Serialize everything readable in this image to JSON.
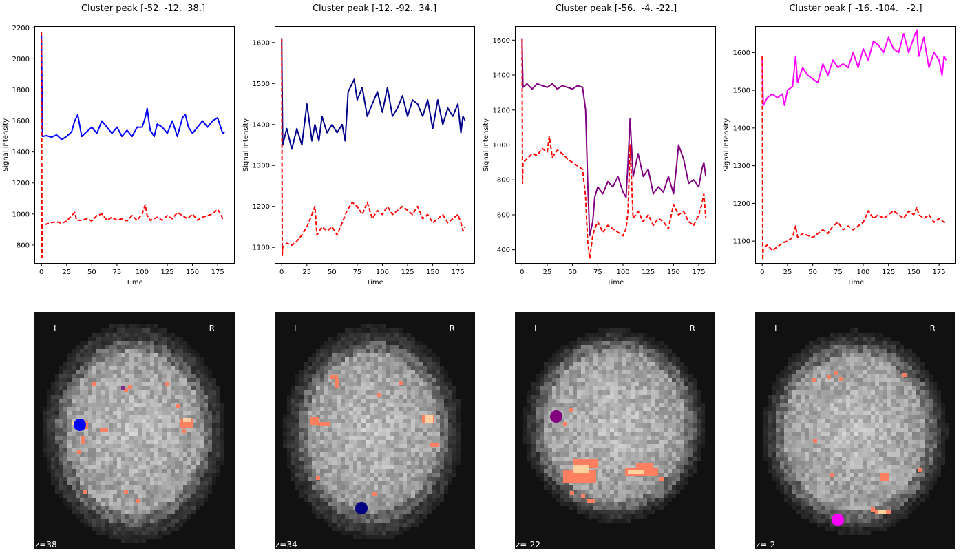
{
  "figure": {
    "panels": [
      {
        "title": "Cluster peak [-52. -12.  38.]",
        "z_label": "z=38",
        "left_label": "L",
        "right_label": "R"
      },
      {
        "title": "Cluster peak [-12. -92.  34.]",
        "z_label": "z=34",
        "left_label": "L",
        "right_label": "R"
      },
      {
        "title": "Cluster peak [-56.  -4. -22.]",
        "z_label": "z=-22",
        "left_label": "L",
        "right_label": "R"
      },
      {
        "title": "Cluster peak [ -16. -104.   -2.]",
        "z_label": "z=-2",
        "left_label": "L",
        "right_label": "R"
      }
    ]
  },
  "chart_data": [
    {
      "type": "line",
      "title": "Cluster peak [-52. -12.  38.]",
      "xlabel": "Time",
      "ylabel": "Signal intensity",
      "xlim": [
        -7,
        192
      ],
      "ylim": [
        680,
        2210
      ],
      "xticks": [
        0,
        25,
        50,
        75,
        100,
        125,
        150,
        175
      ],
      "yticks": [
        800,
        1000,
        1200,
        1400,
        1600,
        1800,
        2000,
        2200
      ],
      "grid": false,
      "series": [
        {
          "color": "#0000ff",
          "style": "solid",
          "x": [
            0,
            1,
            5,
            10,
            15,
            20,
            25,
            30,
            33,
            36,
            40,
            45,
            50,
            55,
            60,
            65,
            70,
            75,
            80,
            85,
            90,
            95,
            100,
            103,
            105,
            108,
            112,
            115,
            120,
            125,
            130,
            135,
            140,
            143,
            146,
            150,
            155,
            160,
            165,
            170,
            175,
            178,
            180,
            182
          ],
          "y": [
            2150,
            1500,
            1505,
            1495,
            1510,
            1480,
            1500,
            1530,
            1600,
            1640,
            1500,
            1530,
            1560,
            1520,
            1600,
            1560,
            1520,
            1560,
            1500,
            1540,
            1500,
            1560,
            1560,
            1620,
            1680,
            1540,
            1500,
            1580,
            1560,
            1520,
            1600,
            1500,
            1620,
            1640,
            1560,
            1520,
            1560,
            1600,
            1560,
            1600,
            1620,
            1560,
            1520,
            1530
          ]
        },
        {
          "color": "#ff0000",
          "style": "dashed",
          "x": [
            0,
            0.5,
            1,
            5,
            10,
            15,
            20,
            25,
            30,
            33,
            35,
            40,
            45,
            50,
            55,
            60,
            65,
            70,
            75,
            80,
            85,
            90,
            95,
            100,
            103,
            105,
            108,
            112,
            115,
            120,
            125,
            130,
            135,
            140,
            145,
            150,
            155,
            160,
            165,
            170,
            175,
            178,
            180,
            182
          ],
          "y": [
            2170,
            720,
            930,
            935,
            945,
            950,
            940,
            955,
            990,
            1010,
            960,
            960,
            970,
            955,
            990,
            1000,
            960,
            980,
            960,
            970,
            955,
            990,
            960,
            1000,
            1060,
            990,
            960,
            970,
            980,
            960,
            990,
            970,
            1010,
            990,
            970,
            1000,
            960,
            980,
            990,
            1000,
            1030,
            1000,
            970,
            960
          ]
        }
      ]
    },
    {
      "type": "line",
      "title": "Cluster peak [-12. -92.  34.]",
      "xlabel": "Time",
      "ylabel": "Signal intensity",
      "xlim": [
        -7,
        192
      ],
      "ylim": [
        1060,
        1640
      ],
      "xticks": [
        0,
        25,
        50,
        75,
        100,
        125,
        150,
        175
      ],
      "yticks": [
        1100,
        1200,
        1300,
        1400,
        1500,
        1600
      ],
      "grid": false,
      "series": [
        {
          "color": "#00008b",
          "style": "solid",
          "x": [
            0,
            1,
            5,
            10,
            15,
            20,
            25,
            30,
            33,
            37,
            40,
            45,
            50,
            55,
            60,
            63,
            66,
            70,
            72,
            75,
            80,
            85,
            90,
            95,
            100,
            105,
            110,
            115,
            120,
            125,
            130,
            135,
            140,
            145,
            150,
            155,
            160,
            165,
            170,
            175,
            178,
            180,
            182
          ],
          "y": [
            1610,
            1350,
            1390,
            1340,
            1390,
            1350,
            1450,
            1360,
            1400,
            1360,
            1420,
            1380,
            1400,
            1380,
            1400,
            1360,
            1480,
            1500,
            1510,
            1460,
            1490,
            1420,
            1450,
            1480,
            1430,
            1490,
            1420,
            1440,
            1470,
            1420,
            1460,
            1450,
            1420,
            1460,
            1390,
            1460,
            1400,
            1440,
            1420,
            1450,
            1380,
            1420,
            1410
          ]
        },
        {
          "color": "#ff0000",
          "style": "dashed",
          "x": [
            0,
            0.5,
            1,
            5,
            10,
            15,
            20,
            25,
            30,
            33,
            35,
            40,
            45,
            50,
            55,
            60,
            65,
            70,
            75,
            80,
            85,
            90,
            95,
            100,
            105,
            110,
            115,
            120,
            125,
            130,
            135,
            140,
            145,
            150,
            155,
            160,
            165,
            170,
            175,
            178,
            180,
            182
          ],
          "y": [
            1610,
            1080,
            1100,
            1110,
            1105,
            1115,
            1130,
            1150,
            1180,
            1200,
            1130,
            1150,
            1140,
            1150,
            1130,
            1160,
            1190,
            1210,
            1200,
            1180,
            1210,
            1170,
            1190,
            1180,
            1200,
            1180,
            1190,
            1200,
            1190,
            1180,
            1200,
            1170,
            1180,
            1160,
            1170,
            1180,
            1160,
            1170,
            1180,
            1160,
            1140,
            1150
          ]
        }
      ]
    },
    {
      "type": "line",
      "title": "Cluster peak [-56.  -4. -22.]",
      "xlabel": "Time",
      "ylabel": "Signal intensity",
      "xlim": [
        -7,
        192
      ],
      "ylim": [
        320,
        1680
      ],
      "xticks": [
        0,
        25,
        50,
        75,
        100,
        125,
        150,
        175
      ],
      "yticks": [
        400,
        600,
        800,
        1000,
        1200,
        1400,
        1600
      ],
      "grid": false,
      "series": [
        {
          "color": "#800080",
          "style": "solid",
          "x": [
            0,
            1,
            5,
            10,
            15,
            20,
            25,
            30,
            35,
            40,
            45,
            50,
            55,
            60,
            63,
            65,
            67,
            70,
            72,
            75,
            80,
            85,
            90,
            95,
            100,
            103,
            105,
            107,
            110,
            115,
            120,
            125,
            130,
            135,
            140,
            145,
            150,
            153,
            155,
            160,
            165,
            170,
            175,
            178,
            180,
            182
          ],
          "y": [
            1610,
            1330,
            1350,
            1320,
            1350,
            1340,
            1330,
            1350,
            1320,
            1340,
            1330,
            1320,
            1340,
            1330,
            1200,
            800,
            480,
            560,
            700,
            760,
            720,
            790,
            760,
            820,
            730,
            700,
            900,
            1150,
            820,
            950,
            820,
            860,
            720,
            760,
            730,
            820,
            720,
            880,
            1000,
            920,
            780,
            800,
            760,
            860,
            900,
            820
          ]
        },
        {
          "color": "#ff0000",
          "style": "dashed",
          "x": [
            0,
            0.5,
            1,
            5,
            10,
            15,
            20,
            25,
            27,
            30,
            35,
            40,
            45,
            50,
            55,
            60,
            63,
            65,
            67,
            70,
            72,
            75,
            80,
            85,
            90,
            95,
            100,
            103,
            105,
            107,
            110,
            115,
            120,
            125,
            130,
            135,
            140,
            145,
            150,
            155,
            160,
            165,
            170,
            175,
            178,
            180,
            182
          ],
          "y": [
            1610,
            780,
            900,
            920,
            950,
            940,
            980,
            960,
            1050,
            930,
            970,
            950,
            920,
            900,
            880,
            860,
            700,
            450,
            350,
            480,
            520,
            560,
            500,
            540,
            520,
            500,
            480,
            520,
            620,
            1000,
            580,
            620,
            560,
            600,
            540,
            580,
            560,
            520,
            660,
            600,
            620,
            560,
            540,
            600,
            660,
            720,
            580
          ]
        }
      ]
    },
    {
      "type": "line",
      "title": "Cluster peak [ -16. -104.   -2.]",
      "xlabel": "Time",
      "ylabel": "Signal intensity",
      "xlim": [
        -7,
        192
      ],
      "ylim": [
        1040,
        1670
      ],
      "xticks": [
        0,
        25,
        50,
        75,
        100,
        125,
        150,
        175
      ],
      "yticks": [
        1100,
        1200,
        1300,
        1400,
        1500,
        1600
      ],
      "grid": false,
      "series": [
        {
          "color": "#ff00ff",
          "style": "solid",
          "x": [
            0,
            1,
            5,
            10,
            15,
            20,
            22,
            25,
            30,
            33,
            35,
            40,
            45,
            50,
            55,
            60,
            65,
            70,
            75,
            80,
            85,
            90,
            95,
            100,
            105,
            110,
            115,
            120,
            125,
            130,
            135,
            140,
            145,
            150,
            153,
            155,
            160,
            165,
            170,
            175,
            178,
            180,
            182
          ],
          "y": [
            1590,
            1460,
            1480,
            1490,
            1480,
            1490,
            1460,
            1500,
            1510,
            1590,
            1520,
            1560,
            1540,
            1530,
            1520,
            1570,
            1540,
            1580,
            1560,
            1570,
            1560,
            1600,
            1560,
            1610,
            1580,
            1630,
            1620,
            1600,
            1640,
            1610,
            1600,
            1650,
            1600,
            1640,
            1660,
            1590,
            1640,
            1560,
            1600,
            1580,
            1540,
            1590,
            1580
          ]
        },
        {
          "color": "#ff0000",
          "style": "dashed",
          "x": [
            0,
            0.5,
            1,
            5,
            10,
            15,
            20,
            25,
            30,
            33,
            35,
            40,
            45,
            50,
            55,
            60,
            65,
            70,
            75,
            80,
            85,
            90,
            95,
            100,
            105,
            110,
            115,
            120,
            125,
            130,
            135,
            140,
            145,
            150,
            153,
            155,
            160,
            165,
            170,
            175,
            180,
            182
          ],
          "y": [
            1590,
            1050,
            1080,
            1090,
            1075,
            1085,
            1095,
            1100,
            1110,
            1140,
            1110,
            1120,
            1115,
            1110,
            1120,
            1130,
            1120,
            1140,
            1150,
            1130,
            1140,
            1130,
            1140,
            1150,
            1180,
            1160,
            1170,
            1160,
            1170,
            1180,
            1170,
            1160,
            1180,
            1170,
            1190,
            1170,
            1160,
            1170,
            1150,
            1160,
            1150,
            1150
          ]
        }
      ]
    }
  ],
  "brain_panels": [
    {
      "marker_color": "#0000ff",
      "hot_color": "#ff8060",
      "warm_color": "#ffd0a0",
      "extra_color": "#7b2d8b"
    },
    {
      "marker_color": "#000080",
      "hot_color": "#ff8060",
      "warm_color": "#ffd0a0"
    },
    {
      "marker_color": "#800080",
      "hot_color": "#ff8060",
      "warm_color": "#ffd0a0"
    },
    {
      "marker_color": "#ff00ff",
      "hot_color": "#ff8060",
      "warm_color": "#ffd0a0"
    }
  ]
}
